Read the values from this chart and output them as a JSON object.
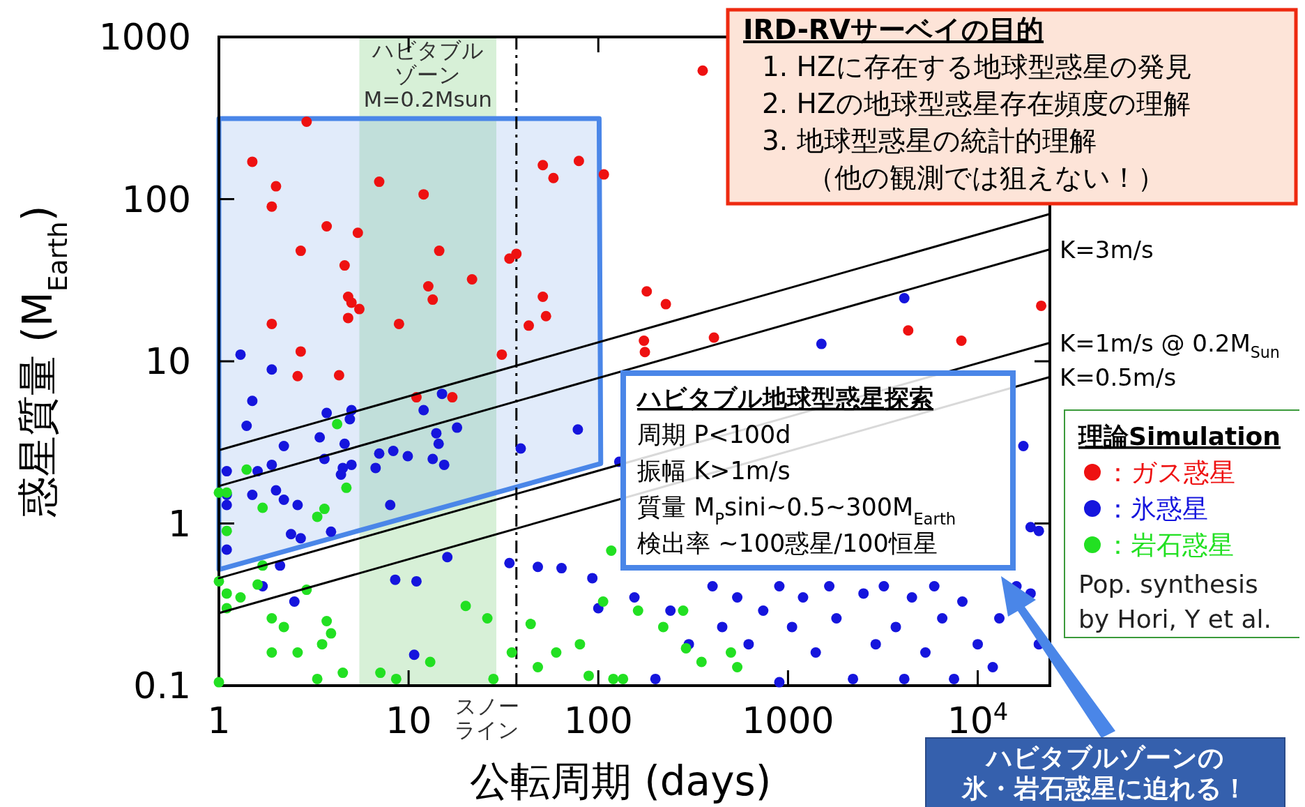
{
  "chart_data": {
    "type": "scatter",
    "xlabel": "公転周期 (days)",
    "ylabel": "惑星質量 (M$_{Earth}$)",
    "legend_title": "理論Simulation",
    "legend": "right",
    "log": "xy",
    "xlim": [
      1,
      24000
    ],
    "ylim": [
      0.1,
      1000
    ],
    "xticks": [
      1,
      10,
      100,
      1000,
      {
        "value": 10000,
        "label": "10$^{4}$"
      }
    ],
    "yticks": [
      0.1,
      1,
      10,
      100,
      1000
    ],
    "bands": [
      {
        "axis": "x",
        "from": 5.5,
        "to": 29,
        "label": "ハビタブルゾーンM=0.2Msun",
        "color": "#cdeccd"
      }
    ],
    "ref_lines": [
      {
        "axis": "x",
        "value": 37,
        "label": "スノーライン",
        "line_style": "dashed"
      }
    ],
    "annotations": [
      "IRD-RVサーベイの目的",
      "1. HZに存在する地球型惑星の発見",
      "2. HZの地球型惑星存在頻度の理解",
      "3. 地球型惑星の統計的理解",
      "（他の観測では狙えない！）",
      "ハビタブル地球型惑星探索",
      "周期 P<100d",
      "振幅 K>1m/s",
      "質量 M$_{P}$sini~0.5~300M$_{Earth}$",
      "検出率 ~100惑星/100恒星",
      "ハビタブルゾーンの",
      "氷・岩石惑星に迫れる！",
      "Pop. synthesis\nby Hori, Y et al."
    ],
    "series": [
      {
        "name": "：ガス惑星",
        "type": "scatter",
        "marker": "circle",
        "color": "#ee1111",
        "x": [
          2.9,
          1.5,
          2.0,
          1.9,
          3.7,
          2.7,
          4.6,
          5.4,
          4.8,
          5.0,
          5.5,
          4.8,
          1.9,
          2.7,
          2.6,
          4.3,
          7.0,
          12,
          14.5,
          12.7,
          13.4,
          21.6,
          8.9,
          11,
          17,
          31,
          34,
          37,
          51,
          58,
          79,
          107,
          355,
          51,
          53,
          43,
          180,
          227,
          174,
          176,
          407,
          4300,
          8200,
          21600
        ],
        "values": [
          300,
          170,
          120,
          90,
          68,
          48,
          39,
          62,
          25,
          23,
          21,
          18.5,
          17,
          11.5,
          8.1,
          8.2,
          128,
          107,
          48,
          29,
          24,
          32,
          17,
          6.0,
          6.0,
          11,
          43,
          46,
          162,
          135,
          172,
          142,
          620,
          25,
          19,
          16.6,
          27,
          22.5,
          13.4,
          11.4,
          14,
          15.5,
          13.4,
          22
        ]
      },
      {
        "name": "：氷惑星",
        "type": "scatter",
        "marker": "circle",
        "color": "#1515dd",
        "x": [
          1.3,
          1.9,
          1.5,
          1.4,
          3.7,
          5.0,
          4.9,
          4.6,
          4.5,
          4.4,
          5.0,
          3.4,
          2.2,
          3.6,
          1.9,
          1.6,
          1.1,
          1.1,
          1.1,
          1.5,
          2.0,
          2.2,
          2.6,
          2.4,
          2.7,
          3.9,
          2.1,
          2.5,
          1.7,
          1.1,
          15,
          12,
          14,
          18,
          7.0,
          8.3,
          9.9,
          13.4,
          15.4,
          6.7,
          14.4,
          8.0,
          16,
          8.5,
          11,
          10.7,
          39,
          34,
          78,
          48,
          64,
          129,
          4100,
          1500,
          17400,
          21000,
          93,
          100,
          155,
          200,
          240,
          300,
          400,
          450,
          540,
          620,
          740,
          900,
          900,
          1050,
          1200,
          1400,
          1650,
          1800,
          2200,
          2500,
          2900,
          3200,
          3700,
          4100,
          4500,
          5300,
          5900,
          6500,
          7500,
          8300,
          10000,
          12000,
          13000,
          16000,
          19000,
          19000,
          21000
        ],
        "values": [
          11,
          8.9,
          5.7,
          4.0,
          4.8,
          5.0,
          4.4,
          3.1,
          2.2,
          2.0,
          2.3,
          3.4,
          3.0,
          2.5,
          2.3,
          2.1,
          2.1,
          1.5,
          1.3,
          1.5,
          1.6,
          1.4,
          1.3,
          0.86,
          0.81,
          0.89,
          0.55,
          0.33,
          0.41,
          0.69,
          6.3,
          5.0,
          3.6,
          3.9,
          2.7,
          2.8,
          2.6,
          2.5,
          2.3,
          2.2,
          3.1,
          1.3,
          0.62,
          0.45,
          0.44,
          0.155,
          2.9,
          0.57,
          3.8,
          0.54,
          0.53,
          2.4,
          24.5,
          12.8,
          3.0,
          0.9,
          0.46,
          0.3,
          0.35,
          0.11,
          0.29,
          0.18,
          0.41,
          0.23,
          0.35,
          0.18,
          0.29,
          0.41,
          0.105,
          0.23,
          0.35,
          0.16,
          0.41,
          0.26,
          0.11,
          0.37,
          0.18,
          0.41,
          0.23,
          0.11,
          0.35,
          0.16,
          0.41,
          0.26,
          0.11,
          0.33,
          0.18,
          0.13,
          0.26,
          0.41,
          0.95,
          0.37,
          0.18
        ]
      },
      {
        "name": "：岩石惑星",
        "type": "scatter",
        "marker": "circle",
        "color": "#22e022",
        "x": [
          1.0,
          1.1,
          1.4,
          1.1,
          1.0,
          1.1,
          1.1,
          1.0,
          1.3,
          1.6,
          1.7,
          1.7,
          1.9,
          1.9,
          2.2,
          2.6,
          2.9,
          3.3,
          3.5,
          3.7,
          3.9,
          3.3,
          3.6,
          4.2,
          4.7,
          4.5,
          7.1,
          8.6,
          13,
          20,
          26,
          28,
          35,
          44,
          48,
          60,
          80,
          89,
          106,
          120,
          117,
          162,
          220,
          280,
          290,
          350,
          500,
          540,
          135
        ],
        "values": [
          1.55,
          1.55,
          2.15,
          0.9,
          0.44,
          0.37,
          0.3,
          0.105,
          0.35,
          0.42,
          0.55,
          1.25,
          0.26,
          0.16,
          0.23,
          0.16,
          0.39,
          0.11,
          0.18,
          0.25,
          0.21,
          1.1,
          1.23,
          4.1,
          1.66,
          0.12,
          0.12,
          0.11,
          0.14,
          0.31,
          0.26,
          0.11,
          0.16,
          0.24,
          0.13,
          0.16,
          0.18,
          0.115,
          0.33,
          0.11,
          0.68,
          0.29,
          0.23,
          0.29,
          0.17,
          0.14,
          0.16,
          0.13,
          0.11
        ]
      },
      {
        "type": "line",
        "color": "#000000",
        "x": [
          1,
          24000
        ],
        "values": [
          2.83,
          81
        ]
      },
      {
        "name": "K=3m/s",
        "type": "line",
        "color": "#000000",
        "x": [
          1,
          24000
        ],
        "values": [
          1.7,
          49
        ]
      },
      {
        "name": "K=1m/s @ 0.2M$_{Sun}$",
        "type": "line",
        "color": "#000000",
        "x": [
          1,
          24000
        ],
        "values": [
          0.46,
          13
        ]
      },
      {
        "name": "K=0.5m/s",
        "type": "line",
        "color": "#000000",
        "x": [
          1,
          24000
        ],
        "values": [
          0.28,
          8
        ]
      }
    ]
  }
}
